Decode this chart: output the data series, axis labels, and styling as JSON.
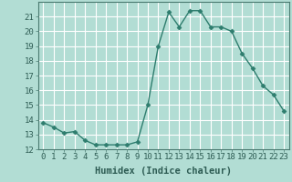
{
  "title": "",
  "xlabel": "Humidex (Indice chaleur)",
  "ylabel": "",
  "x": [
    0,
    1,
    2,
    3,
    4,
    5,
    6,
    7,
    8,
    9,
    10,
    11,
    12,
    13,
    14,
    15,
    16,
    17,
    18,
    19,
    20,
    21,
    22,
    23
  ],
  "y": [
    13.8,
    13.5,
    13.1,
    13.2,
    12.6,
    12.3,
    12.3,
    12.3,
    12.3,
    12.5,
    15.0,
    19.0,
    21.3,
    20.3,
    21.4,
    21.4,
    20.3,
    20.3,
    20.0,
    18.5,
    17.5,
    16.3,
    15.7,
    14.6
  ],
  "ylim": [
    12,
    22
  ],
  "xlim": [
    -0.5,
    23.5
  ],
  "yticks": [
    12,
    13,
    14,
    15,
    16,
    17,
    18,
    19,
    20,
    21
  ],
  "xticks": [
    0,
    1,
    2,
    3,
    4,
    5,
    6,
    7,
    8,
    9,
    10,
    11,
    12,
    13,
    14,
    15,
    16,
    17,
    18,
    19,
    20,
    21,
    22,
    23
  ],
  "line_color": "#2e7d6e",
  "marker": "D",
  "marker_size": 2.5,
  "bg_color": "#b2ddd4",
  "grid_color": "#ffffff",
  "tick_label_fontsize": 6.5,
  "xlabel_fontsize": 7.5,
  "line_width": 1.0
}
